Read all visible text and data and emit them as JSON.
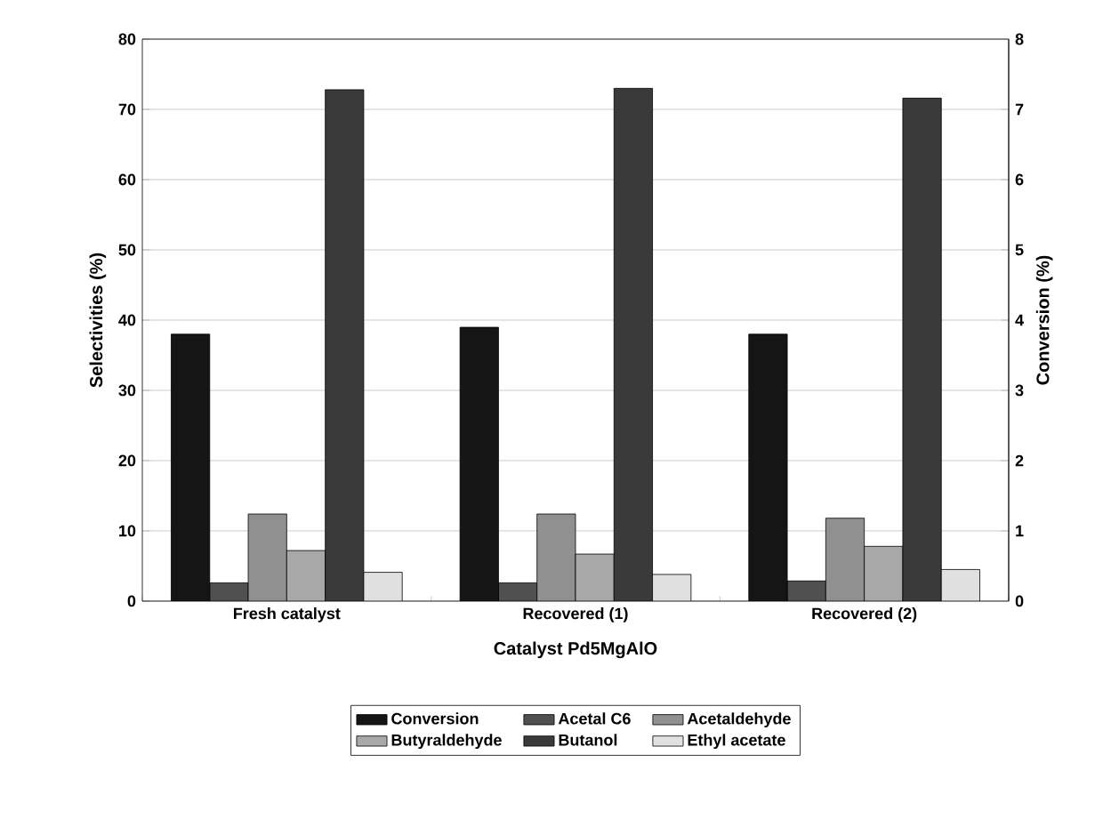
{
  "chart_data": {
    "type": "bar",
    "xlabel": "Catalyst Pd5MgAlO",
    "ylabel": "Selectivities (%)",
    "y2label": "Conversion (%)",
    "categories": [
      "Fresh catalyst",
      "Recovered (1)",
      "Recovered (2)"
    ],
    "series": [
      {
        "name": "Conversion",
        "color": "#151515",
        "axis": "y2",
        "values": [
          3.8,
          3.9,
          3.8
        ]
      },
      {
        "name": "Acetal C6",
        "color": "#505050",
        "values": [
          2.6,
          2.6,
          2.9
        ]
      },
      {
        "name": "Acetaldehyde",
        "color": "#909090",
        "values": [
          12.4,
          12.4,
          11.8
        ]
      },
      {
        "name": "Butyraldehyde",
        "color": "#a8a8a8",
        "values": [
          7.2,
          6.7,
          7.8
        ]
      },
      {
        "name": "Butanol",
        "color": "#3a3a3a",
        "values": [
          72.8,
          73.0,
          71.6
        ]
      },
      {
        "name": "Ethyl acetate",
        "color": "#e0e0e0",
        "values": [
          4.1,
          3.8,
          4.5
        ]
      }
    ],
    "ylim": [
      0,
      80
    ],
    "yticks": [
      0,
      10,
      20,
      30,
      40,
      50,
      60,
      70,
      80
    ],
    "y2lim": [
      0,
      8
    ],
    "y2ticks": [
      0,
      1,
      2,
      3,
      4,
      5,
      6,
      7,
      8
    ],
    "grid": "y",
    "legend": "bottom"
  }
}
